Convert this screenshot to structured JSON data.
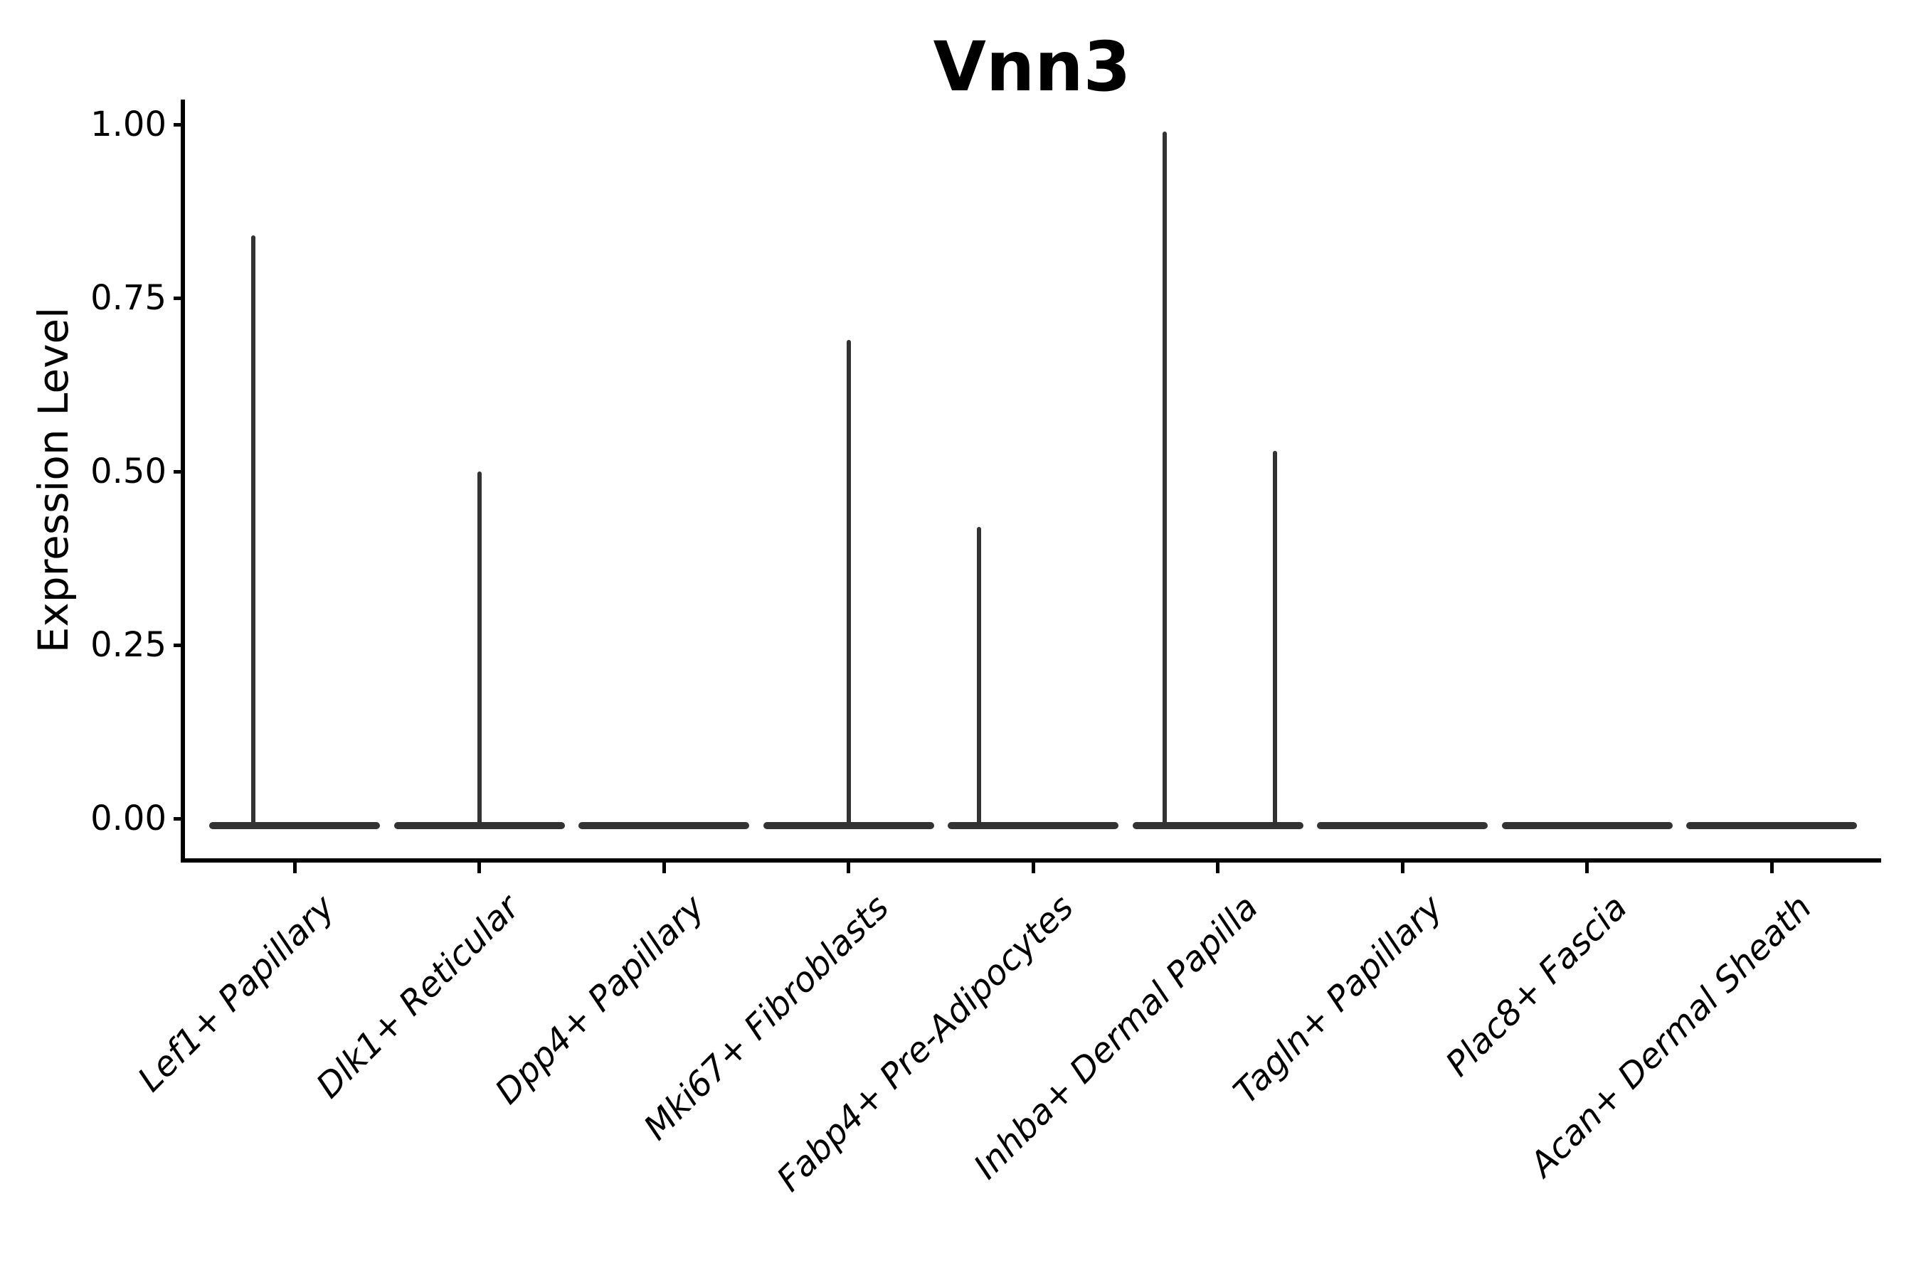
{
  "title": "Vnn3",
  "axes": {
    "y_label": "Expression Level",
    "y_tick_labels": [
      "1.00",
      "0.75",
      "0.50",
      "0.25",
      "0.00"
    ]
  },
  "chart_data": {
    "type": "violin",
    "title": "Vnn3",
    "xlabel": "",
    "ylabel": "Expression Level",
    "ylim": [
      0.0,
      1.0
    ],
    "yticks": [
      1.0,
      0.75,
      0.5,
      0.25,
      0.0
    ],
    "ytick_labels": [
      "1.00",
      "0.75",
      "0.50",
      "0.25",
      "0.00"
    ],
    "grid": false,
    "legend": "none",
    "violin_color": "#333333",
    "axis_color": "#000000",
    "categories": [
      "Lef1+ Papillary",
      "Dlk1+ Reticular",
      "Dpp4+ Papillary",
      "Mki67+ Fibroblasts",
      "Fabp4+ Pre-Adipocytes",
      "Inhba+ Dermal Papilla",
      "Tagln+ Papillary",
      "Plac8+ Fascia",
      "Acan+ Dermal Sheath"
    ],
    "series": [
      {
        "category": "Lef1+ Papillary",
        "baseline_value": 0.0,
        "max_expression": 0.84,
        "spikes": [
          {
            "value": 0.84,
            "x_offset": -58
          }
        ]
      },
      {
        "category": "Dlk1+ Reticular",
        "baseline_value": 0.0,
        "max_expression": 0.5,
        "spikes": [
          {
            "value": 0.5,
            "x_offset": 0
          }
        ]
      },
      {
        "category": "Dpp4+ Papillary",
        "baseline_value": 0.0,
        "max_expression": 0.0,
        "spikes": []
      },
      {
        "category": "Mki67+ Fibroblasts",
        "baseline_value": 0.0,
        "max_expression": 0.69,
        "spikes": [
          {
            "value": 0.69,
            "x_offset": 0
          }
        ]
      },
      {
        "category": "Fabp4+ Pre-Adipocytes",
        "baseline_value": 0.0,
        "max_expression": 0.42,
        "spikes": [
          {
            "value": 0.42,
            "x_offset": -76
          }
        ]
      },
      {
        "category": "Inhba+ Dermal Papilla",
        "baseline_value": 0.0,
        "max_expression": 0.99,
        "spikes": [
          {
            "value": 0.99,
            "x_offset": -75
          },
          {
            "value": 0.53,
            "x_offset": 80
          }
        ]
      },
      {
        "category": "Tagln+ Papillary",
        "baseline_value": 0.0,
        "max_expression": 0.0,
        "spikes": []
      },
      {
        "category": "Plac8+ Fascia",
        "baseline_value": 0.0,
        "max_expression": 0.0,
        "spikes": []
      },
      {
        "category": "Acan+ Dermal Sheath",
        "baseline_value": 0.0,
        "max_expression": 0.0,
        "spikes": []
      }
    ]
  }
}
